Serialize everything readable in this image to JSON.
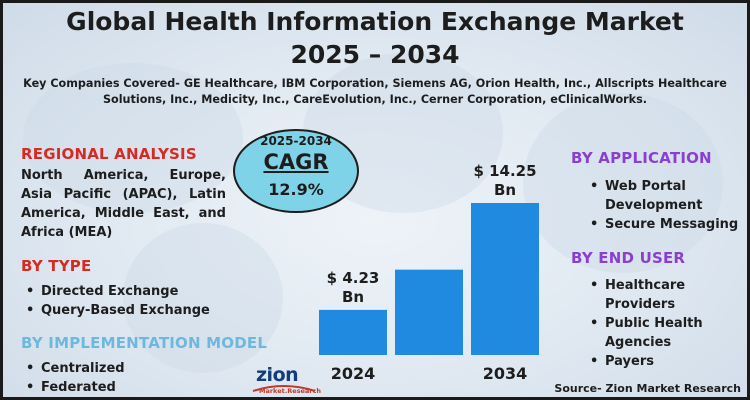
{
  "title_line1": "Global Health Information Exchange Market",
  "title_line2": "2025 – 2034",
  "companies_text": "Key Companies Covered- GE Healthcare, IBM Corporation, Siemens AG, Orion Health, Inc., Allscripts Healthcare Solutions, Inc., Medicity, Inc., CareEvolution, Inc., Cerner Corporation, eClinicalWorks.",
  "regional": {
    "heading": "REGIONAL ANALYSIS",
    "text": "North America, Europe, Asia Pacific (APAC), Latin America, Middle East, and Africa (MEA)"
  },
  "by_type": {
    "heading": "BY TYPE",
    "items": [
      "Directed Exchange",
      "Query-Based Exchange"
    ]
  },
  "by_implementation": {
    "heading": "BY IMPLEMENTATION MODEL",
    "items": [
      "Centralized",
      "Federated"
    ]
  },
  "by_application": {
    "heading": "BY APPLICATION",
    "items": [
      "Web Portal Development",
      "Secure Messaging"
    ]
  },
  "by_end_user": {
    "heading": "BY END USER",
    "items": [
      "Healthcare Providers",
      "Public Health Agencies",
      "Payers"
    ]
  },
  "cagr": {
    "years": "2025-2034",
    "label": "CAGR",
    "value": "12.9%"
  },
  "logo": {
    "name": "zion",
    "sub": "Market.Research"
  },
  "source": "Source- Zion Market Research",
  "colors": {
    "heading_red": "#d62a23",
    "heading_purple": "#8a3fd0",
    "heading_blue": "#6fb8dd",
    "bar_blue": "#1f8ae0",
    "cagr_oval": "#7fd3e8"
  },
  "chart_data": {
    "type": "bar",
    "categories": [
      "2024",
      "",
      "2034"
    ],
    "values": [
      4.23,
      8.0,
      14.25
    ],
    "data_labels": [
      "$ 4.23 Bn",
      "",
      "$ 14.25 Bn"
    ],
    "unit": "Bn",
    "title": "",
    "xlabel": "",
    "ylabel": ""
  }
}
